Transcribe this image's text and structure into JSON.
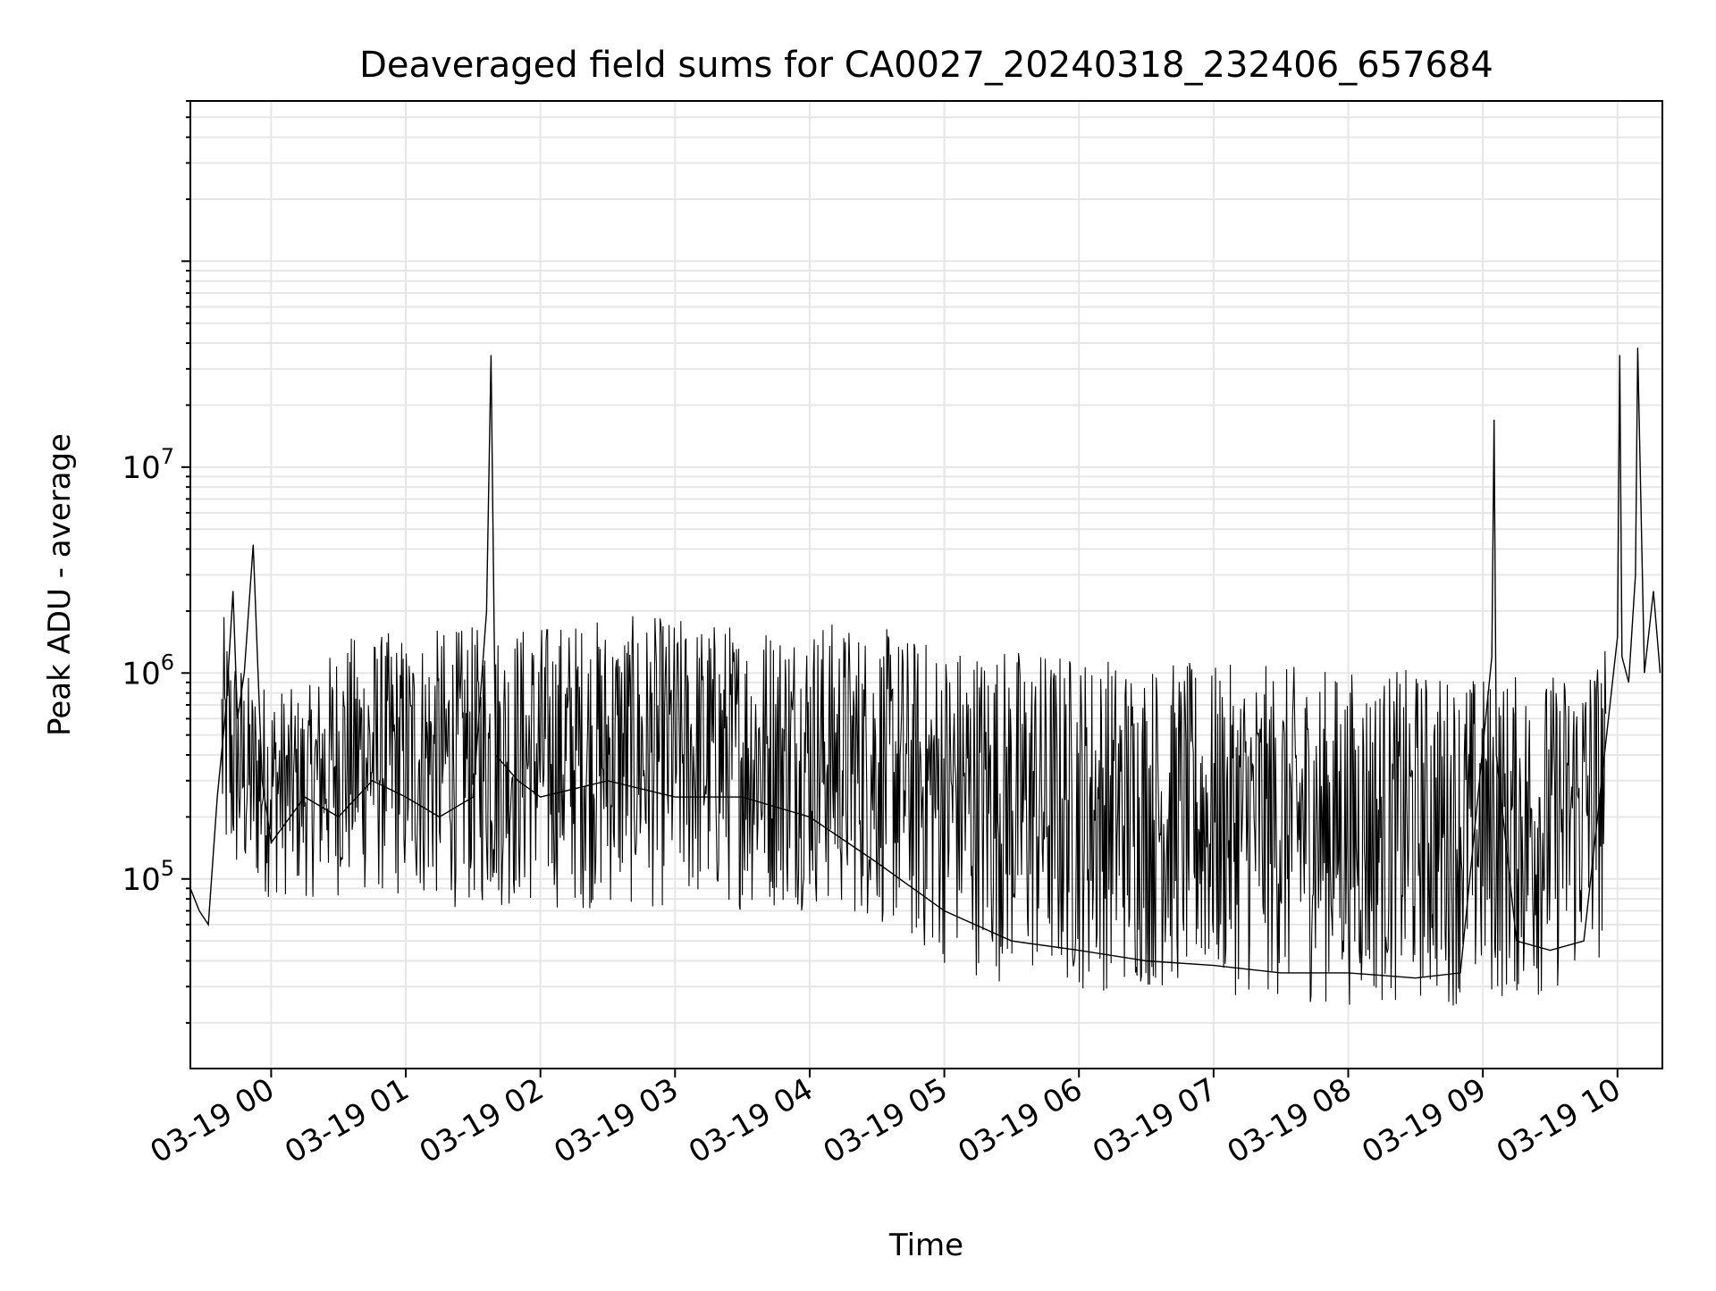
{
  "chart_data": {
    "type": "line",
    "title": "Deaveraged field sums for CA0027_20240318_232406_657684",
    "xlabel": "Time",
    "ylabel": "Peak ADU - average",
    "yscale": "log",
    "grid": true,
    "legend": "none",
    "line_color": "#000000",
    "xlim": [
      "2024-03-18 23:24",
      "2024-03-19 10:20"
    ],
    "ylim": [
      12000,
      600000000
    ],
    "x_ticks": [
      "03-19 00",
      "03-19 01",
      "03-19 02",
      "03-19 03",
      "03-19 04",
      "03-19 05",
      "03-19 06",
      "03-19 07",
      "03-19 08",
      "03-19 09",
      "03-19 10"
    ],
    "y_ticks": [
      {
        "base": "10",
        "exp": "5",
        "value": 100000
      },
      {
        "base": "10",
        "exp": "6",
        "value": 1000000
      },
      {
        "base": "10",
        "exp": "7",
        "value": 10000000
      }
    ],
    "series": [
      {
        "x": [
          "2024-03-18 23:24",
          "2024-03-18 23:28",
          "2024-03-18 23:32",
          "2024-03-18 23:36",
          "2024-03-18 23:40",
          "2024-03-18 23:43",
          "2024-03-18 23:45",
          "2024-03-18 23:48",
          "2024-03-18 23:52",
          "2024-03-18 23:56",
          "2024-03-19 00:00",
          "2024-03-19 00:15",
          "2024-03-19 00:30",
          "2024-03-19 00:45",
          "2024-03-19 01:00",
          "2024-03-19 01:15",
          "2024-03-19 01:30",
          "2024-03-19 01:36",
          "2024-03-19 01:38",
          "2024-03-19 01:40",
          "2024-03-19 01:50",
          "2024-03-19 02:00",
          "2024-03-19 02:30",
          "2024-03-19 03:00",
          "2024-03-19 03:30",
          "2024-03-19 04:00",
          "2024-03-19 04:30",
          "2024-03-19 05:00",
          "2024-03-19 05:30",
          "2024-03-19 06:00",
          "2024-03-19 06:30",
          "2024-03-19 07:00",
          "2024-03-19 07:30",
          "2024-03-19 08:00",
          "2024-03-19 08:30",
          "2024-03-19 08:50",
          "2024-03-19 09:04",
          "2024-03-19 09:05",
          "2024-03-19 09:06",
          "2024-03-19 09:15",
          "2024-03-19 09:30",
          "2024-03-19 09:45",
          "2024-03-19 10:00",
          "2024-03-19 10:01",
          "2024-03-19 10:02",
          "2024-03-19 10:05",
          "2024-03-19 10:08",
          "2024-03-19 10:09",
          "2024-03-19 10:12",
          "2024-03-19 10:16",
          "2024-03-19 10:19"
        ],
        "y": [
          90000,
          70000,
          60000,
          250000,
          700000,
          2500000,
          600000,
          1000000,
          4200000,
          300000,
          150000,
          250000,
          200000,
          300000,
          250000,
          200000,
          250000,
          2000000,
          35000000,
          400000,
          300000,
          250000,
          300000,
          250000,
          250000,
          200000,
          120000,
          70000,
          50000,
          45000,
          40000,
          38000,
          35000,
          35000,
          33000,
          35000,
          1200000,
          17000000,
          400000,
          50000,
          45000,
          50000,
          1500000,
          35000000,
          1200000,
          900000,
          3000000,
          38000000,
          1000000,
          2500000,
          1000000
        ]
      }
    ],
    "band": {
      "x": [
        "2024-03-18 23:38",
        "2024-03-18 23:50",
        "2024-03-19 00:15",
        "2024-03-19 00:30",
        "2024-03-19 00:45",
        "2024-03-19 01:00",
        "2024-03-19 01:30",
        "2024-03-19 02:00",
        "2024-03-19 02:30",
        "2024-03-19 03:00",
        "2024-03-19 03:30",
        "2024-03-19 04:00",
        "2024-03-19 04:30",
        "2024-03-19 04:50",
        "2024-03-19 05:30",
        "2024-03-19 06:00",
        "2024-03-19 06:30",
        "2024-03-19 07:00",
        "2024-03-19 07:30",
        "2024-03-19 08:00",
        "2024-03-19 08:30",
        "2024-03-19 09:00",
        "2024-03-19 09:30",
        "2024-03-19 09:55"
      ],
      "high": [
        2000000,
        1000000,
        800000,
        1500000,
        1600000,
        1600000,
        1700000,
        1800000,
        1900000,
        1900000,
        1800000,
        1900000,
        1700000,
        1500000,
        1400000,
        1300000,
        1200000,
        1100000,
        1100000,
        1050000,
        1050000,
        1000000,
        1000000,
        1400000
      ],
      "low": [
        90000,
        80000,
        80000,
        80000,
        80000,
        75000,
        70000,
        70000,
        70000,
        70000,
        70000,
        70000,
        60000,
        40000,
        30000,
        28000,
        28000,
        28000,
        25000,
        24000,
        24000,
        24000,
        26000,
        40000
      ]
    }
  }
}
